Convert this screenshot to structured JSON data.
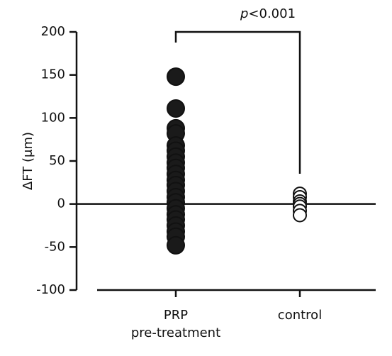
{
  "chart_data": {
    "type": "strip",
    "y_label": "ΔFT (μm)",
    "annotation": "p<0.001",
    "categories": [
      "PRP\npre-treatment",
      "control"
    ],
    "series": [
      {
        "name": "PRP pre-treatment",
        "color": "#1a1a1a",
        "values": [
          148,
          111,
          88,
          82,
          68,
          62,
          55,
          48,
          42,
          35,
          28,
          22,
          15,
          8,
          2,
          -5,
          -12,
          -18,
          -25,
          -32,
          -38,
          -48
        ]
      },
      {
        "name": "control",
        "color": "#ffffff",
        "values": [
          12,
          8,
          3,
          0,
          -3,
          -8,
          -13
        ]
      }
    ],
    "ylim": [
      -100,
      200
    ],
    "yticks": [
      -100,
      -50,
      0,
      50,
      100,
      150,
      200
    ]
  }
}
